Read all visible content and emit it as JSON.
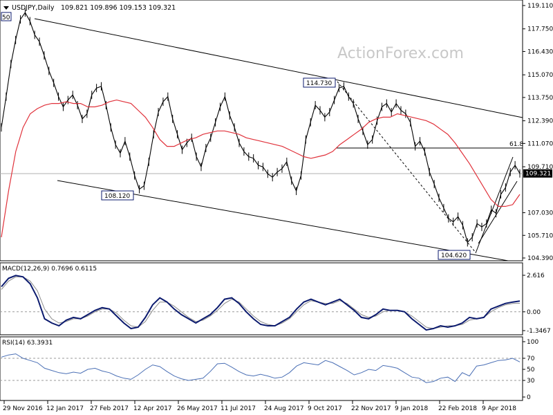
{
  "header": {
    "symbol_line": "USDJPY,Daily",
    "ohlc": "109.821 109.896 109.153 109.321",
    "dropdown_icon": "triangle-down-icon"
  },
  "watermark": "ActionForex.com",
  "colors": {
    "price": "#000000",
    "ma": "#e0313a",
    "channel": "#000000",
    "macd": "#0b1a6e",
    "signal": "#8a8a8a",
    "rsi": "#4a6fb5",
    "level_line": "#000000",
    "last_price_box": "#000000"
  },
  "chart_data": [
    {
      "type": "line",
      "panel": "price",
      "symbol": "USDJPY",
      "timeframe": "Daily",
      "ylim": [
        104.39,
        119.11
      ],
      "y_ticks": [
        "119.110",
        "117.750",
        "116.430",
        "115.070",
        "113.750",
        "112.390",
        "111.070",
        "109.710",
        "107.030",
        "105.710",
        "104.390"
      ],
      "x_ticks": [
        "29 Nov 2016",
        "12 Jan 2017",
        "27 Feb 2017",
        "12 Apr 2017",
        "26 May 2017",
        "11 Jul 2017",
        "24 Aug 2017",
        "9 Oct 2017",
        "22 Nov 2017",
        "9 Jan 2018",
        "22 Feb 2018",
        "9 Apr 2018"
      ],
      "last_price": "109.321",
      "series": [
        {
          "values": [
            112.0,
            113.8,
            115.7,
            117.1,
            118.3,
            118.7,
            118.2,
            117.4,
            117.0,
            116.2,
            115.3,
            114.6,
            113.8,
            113.2,
            113.6,
            113.9,
            113.3,
            112.5,
            112.8,
            113.9,
            114.3,
            114.4,
            113.3,
            112.0,
            111.0,
            110.5,
            111.2,
            110.3,
            109.2,
            108.4,
            108.6,
            110.0,
            111.6,
            112.9,
            113.5,
            113.8,
            112.5,
            111.6,
            110.7,
            111.1,
            111.4,
            110.3,
            109.7,
            110.8,
            111.4,
            112.3,
            113.2,
            113.8,
            112.7,
            112.0,
            111.1,
            110.6,
            110.3,
            110.2,
            109.8,
            109.7,
            109.3,
            109.1,
            109.4,
            109.6,
            110.0,
            108.9,
            108.3,
            109.2,
            111.3,
            112.3,
            113.3,
            113.0,
            112.6,
            112.9,
            113.6,
            114.3,
            114.4,
            113.8,
            113.4,
            112.5,
            111.8,
            111.0,
            111.3,
            112.4,
            113.2,
            113.4,
            112.9,
            113.4,
            113.0,
            112.8,
            112.3,
            110.9,
            111.2,
            110.6,
            109.4,
            108.7,
            107.9,
            107.3,
            106.7,
            106.5,
            106.8,
            106.3,
            105.3,
            105.6,
            106.4,
            106.2,
            106.4,
            107.2,
            107.0,
            108.1,
            108.5,
            109.4,
            109.8,
            109.32
          ]
        },
        {
          "name": "MA",
          "values": [
            105.6,
            108.3,
            110.6,
            112.0,
            112.8,
            113.1,
            113.3,
            113.4,
            113.4,
            113.5,
            113.4,
            113.4,
            113.2,
            113.2,
            113.3,
            113.5,
            113.6,
            113.5,
            113.4,
            113.0,
            112.6,
            112.0,
            111.3,
            110.9,
            110.9,
            111.1,
            111.3,
            111.4,
            111.6,
            111.7,
            111.8,
            111.8,
            111.7,
            111.6,
            111.4,
            111.3,
            111.2,
            111.1,
            111.0,
            110.9,
            110.7,
            110.5,
            110.3,
            110.2,
            110.3,
            110.4,
            110.6,
            111.0,
            111.3,
            111.6,
            111.9,
            112.3,
            112.5,
            112.6,
            112.6,
            112.8,
            112.7,
            112.6,
            112.5,
            112.4,
            112.2,
            111.9,
            111.6,
            111.1,
            110.5,
            109.9,
            109.2,
            108.5,
            107.8,
            107.4,
            107.4,
            107.5,
            108.1
          ]
        }
      ],
      "annotations": [
        "114.730",
        "108.120",
        "104.620",
        "61.8",
        "50"
      ]
    },
    {
      "type": "line",
      "panel": "macd",
      "title": "MACD(12,26,9) 0.7696 0.6115",
      "y_ticks": [
        "2.616",
        "0.00",
        "-1.3467"
      ],
      "series": [
        {
          "values": [
            1.8,
            2.4,
            2.6,
            2.5,
            2.0,
            1.0,
            -0.5,
            -0.8,
            -1.0,
            -0.6,
            -0.4,
            -0.5,
            -0.2,
            0.1,
            0.3,
            0.2,
            -0.3,
            -0.8,
            -1.2,
            -1.1,
            -0.4,
            0.5,
            1.0,
            0.7,
            0.2,
            -0.2,
            -0.5,
            -0.8,
            -0.5,
            -0.2,
            0.3,
            0.9,
            1.0,
            0.6,
            0.0,
            -0.5,
            -0.9,
            -1.0,
            -1.0,
            -0.7,
            -0.4,
            0.2,
            0.7,
            0.9,
            0.7,
            0.5,
            0.7,
            0.9,
            0.5,
            0.1,
            -0.4,
            -0.5,
            -0.2,
            0.2,
            0.1,
            0.1,
            0.0,
            -0.5,
            -0.9,
            -1.3,
            -1.2,
            -1.0,
            -1.1,
            -1.0,
            -0.8,
            -0.4,
            -0.5,
            -0.4,
            0.2,
            0.4,
            0.6,
            0.7,
            0.77
          ]
        },
        {
          "values": [
            1.6,
            2.2,
            2.5,
            2.5,
            2.2,
            1.5,
            0.2,
            -0.5,
            -0.8,
            -0.7,
            -0.5,
            -0.5,
            -0.3,
            0.0,
            0.2,
            0.2,
            -0.1,
            -0.6,
            -1.0,
            -1.1,
            -0.7,
            0.1,
            0.7,
            0.7,
            0.4,
            0.0,
            -0.4,
            -0.7,
            -0.6,
            -0.3,
            0.1,
            0.6,
            0.9,
            0.7,
            0.2,
            -0.3,
            -0.7,
            -0.9,
            -1.0,
            -0.8,
            -0.5,
            0.0,
            0.5,
            0.8,
            0.7,
            0.6,
            0.6,
            0.8,
            0.6,
            0.2,
            -0.2,
            -0.4,
            -0.3,
            0.0,
            0.1,
            0.1,
            0.0,
            -0.3,
            -0.7,
            -1.1,
            -1.2,
            -1.1,
            -1.0,
            -1.0,
            -0.9,
            -0.6,
            -0.5,
            -0.4,
            0.0,
            0.3,
            0.5,
            0.6,
            0.61
          ]
        }
      ]
    },
    {
      "type": "line",
      "panel": "rsi",
      "title": "RSI(14) 63.3931",
      "y_ticks": [
        "100",
        "70",
        "50",
        "30",
        "0"
      ],
      "levels": [
        70,
        30
      ],
      "series": [
        {
          "values": [
            72,
            76,
            78,
            70,
            66,
            62,
            52,
            48,
            44,
            42,
            45,
            43,
            50,
            52,
            47,
            44,
            38,
            34,
            32,
            40,
            50,
            58,
            55,
            46,
            38,
            33,
            30,
            32,
            34,
            46,
            60,
            61,
            54,
            46,
            40,
            38,
            41,
            38,
            34,
            36,
            44,
            56,
            62,
            60,
            58,
            66,
            62,
            55,
            48,
            40,
            44,
            50,
            48,
            57,
            55,
            52,
            44,
            36,
            34,
            26,
            28,
            34,
            36,
            28,
            44,
            38,
            56,
            58,
            62,
            66,
            67,
            70,
            63.4
          ]
        }
      ]
    }
  ]
}
